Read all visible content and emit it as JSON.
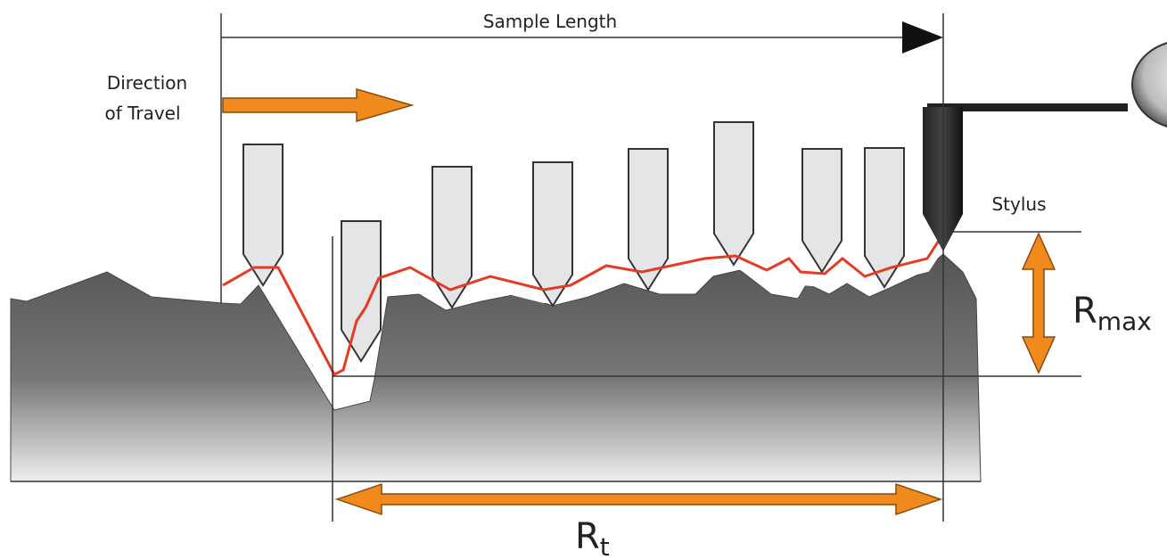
{
  "labels": {
    "sample_length": "Sample Length",
    "direction": [
      "Direction",
      "of Travel"
    ],
    "stylus": "Stylus",
    "rmax": {
      "base": "R",
      "sub": "max"
    },
    "rt": {
      "base": "R",
      "sub": "t"
    }
  }
}
